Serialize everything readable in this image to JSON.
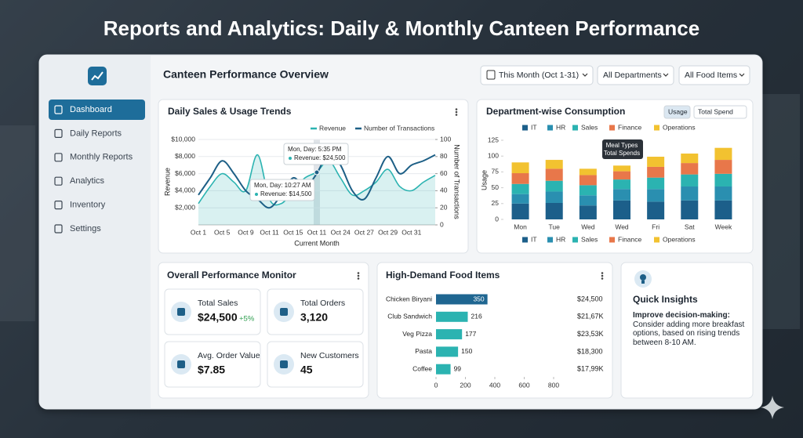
{
  "header": {
    "title": "Reports and Analytics: Daily & Monthly Canteen Performance"
  },
  "sidebar": {
    "items": [
      "Dashboard",
      "Daily Reports",
      "Monthly Reports",
      "Analytics",
      "Inventory",
      "Settings"
    ]
  },
  "toolbar": {
    "title": "Canteen Performance Overview",
    "filters": [
      "This Month (Oct 1-31)",
      "All Departments",
      "All Food Items"
    ]
  },
  "chart_data": [
    {
      "type": "line",
      "title": "Daily Sales & Usage Trends",
      "x_label": "Current Month",
      "y_label": "Revenue",
      "y2_label": "Number of Transactions",
      "categories": [
        "Oct 1",
        null,
        "Oct 5",
        null,
        "Oct 9",
        null,
        "Oct 11",
        null,
        "Oct 15",
        null,
        "Oct 11",
        null,
        "Oct 24",
        null,
        "Oct 27",
        null,
        "Oct 29",
        null,
        "Oct 31",
        null,
        null
      ],
      "series": [
        {
          "name": "Revenue",
          "color": "#2bb3b1",
          "values": [
            2500,
            4500,
            6000,
            5000,
            4000,
            8200,
            3000,
            2500,
            4000,
            5500,
            6200,
            7500,
            5500,
            3500,
            4000,
            5000,
            6500,
            4500,
            4000,
            5000,
            5800
          ]
        },
        {
          "name": "Number of Transactions",
          "color": "#1d5f86",
          "axis": "y2",
          "values": [
            35,
            55,
            75,
            60,
            40,
            30,
            20,
            35,
            55,
            45,
            60,
            85,
            70,
            40,
            30,
            55,
            80,
            60,
            70,
            75,
            82
          ]
        }
      ],
      "ylim": [
        0,
        10000
      ],
      "yticks": [
        {
          "value": 2000,
          "label": "$2,000"
        },
        {
          "value": 4000,
          "label": "$4,000"
        },
        {
          "value": 6000,
          "label": "$6,000"
        },
        {
          "value": 8000,
          "label": "$8,000"
        },
        {
          "value": 10000,
          "label": "$10,000"
        }
      ],
      "y2lim": [
        0,
        100
      ],
      "y2ticks": [
        0,
        20,
        40,
        60,
        80,
        100
      ],
      "grid": true,
      "legend": "top-right",
      "annotations": [
        {
          "title": "Mon, Day: 5:35 PM",
          "text": "Revenue: $24,500"
        },
        {
          "title": "Mon, Day: 10:27 AM",
          "text": "Revenue: $14,500"
        }
      ]
    },
    {
      "type": "stacked_bar",
      "title": "Department-wise Consumption",
      "y_label": "Usage",
      "toggles": [
        "Usage",
        "Total Spend"
      ],
      "categories": [
        "Mon",
        "Tue",
        "Wed",
        "Wed",
        "Fri",
        "Sat",
        "Week"
      ],
      "series": [
        {
          "name": "IT",
          "color": "#1c5f8a",
          "values": [
            25,
            26,
            22,
            30,
            28,
            30,
            30
          ]
        },
        {
          "name": "HR",
          "color": "#2a8fb0",
          "values": [
            15,
            18,
            16,
            18,
            20,
            22,
            22
          ]
        },
        {
          "name": "Sales",
          "color": "#2bb3b1",
          "values": [
            16,
            17,
            16,
            15,
            18,
            19,
            20
          ]
        },
        {
          "name": "Finance",
          "color": "#e8774a",
          "values": [
            17,
            19,
            16,
            13,
            17,
            18,
            22
          ]
        },
        {
          "name": "Operations",
          "color": "#f2c230",
          "values": [
            17,
            14,
            10,
            9,
            16,
            15,
            19
          ]
        }
      ],
      "ylim": [
        0,
        125
      ],
      "yticks": [
        0,
        25,
        50,
        75,
        100,
        125
      ],
      "legend": "top-bottom",
      "annotations": [
        {
          "title": "Meal Types",
          "text": "Total Spends"
        }
      ]
    },
    {
      "type": "hbar",
      "title": "High-Demand Food Items",
      "categories": [
        "Chicken Biryani",
        "Club Sandwich",
        "Veg Pizza",
        "Pasta",
        "Coffee"
      ],
      "values": [
        350,
        216,
        177,
        150,
        99
      ],
      "colors": [
        "#1f6691",
        "#2bb3b1",
        "#2bb3b1",
        "#2bb3b1",
        "#2bb3b1"
      ],
      "amounts": [
        "$24,500",
        "$21,67K",
        "$23,53K",
        "$18,300",
        "$17,99K"
      ],
      "xlim": [
        0,
        800
      ],
      "xticks": [
        0,
        200,
        400,
        600,
        800
      ]
    }
  ],
  "performance": {
    "title": "Overall Performance Monitor",
    "cards": [
      {
        "label": "Total Sales",
        "value": "$24,500",
        "change": "+5%"
      },
      {
        "label": "Total Orders",
        "value": "3,120"
      },
      {
        "label": "Avg. Order Value",
        "value": "$7.85"
      },
      {
        "label": "New Customers",
        "value": "45"
      }
    ]
  },
  "insights": {
    "title": "Quick Insights",
    "heading": "Improve decision-making:",
    "text": "Consider adding more breakfast options, based on rising trends between 8-10 AM."
  }
}
